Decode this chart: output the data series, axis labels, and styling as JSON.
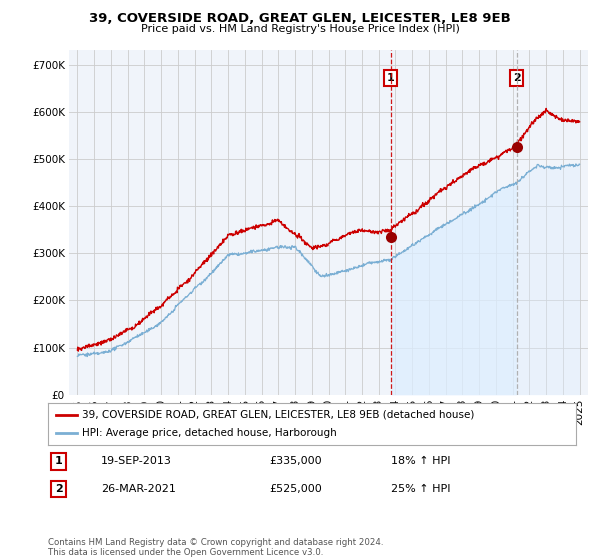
{
  "title": "39, COVERSIDE ROAD, GREAT GLEN, LEICESTER, LE8 9EB",
  "subtitle": "Price paid vs. HM Land Registry's House Price Index (HPI)",
  "ylabel_ticks": [
    "£0",
    "£100K",
    "£200K",
    "£300K",
    "£400K",
    "£500K",
    "£600K",
    "£700K"
  ],
  "ytick_values": [
    0,
    100000,
    200000,
    300000,
    400000,
    500000,
    600000,
    700000
  ],
  "ylim": [
    0,
    730000
  ],
  "xlim_start": 1994.5,
  "xlim_end": 2025.5,
  "sale1_date": 2013.72,
  "sale1_price": 335000,
  "sale2_date": 2021.23,
  "sale2_price": 525000,
  "red_line_color": "#cc0000",
  "blue_line_color": "#7bafd4",
  "blue_fill_color": "#ddeeff",
  "vline1_color": "#cc0000",
  "vline2_color": "#aaaaaa",
  "marker_color": "#990000",
  "legend_label_red": "39, COVERSIDE ROAD, GREAT GLEN, LEICESTER, LE8 9EB (detached house)",
  "legend_label_blue": "HPI: Average price, detached house, Harborough",
  "footer": "Contains HM Land Registry data © Crown copyright and database right 2024.\nThis data is licensed under the Open Government Licence v3.0.",
  "bg_color": "#ffffff",
  "plot_bg_color": "#f0f4fa",
  "grid_color": "#cccccc",
  "xtick_years": [
    1995,
    1996,
    1997,
    1998,
    1999,
    2000,
    2001,
    2002,
    2003,
    2004,
    2005,
    2006,
    2007,
    2008,
    2009,
    2010,
    2011,
    2012,
    2013,
    2014,
    2015,
    2016,
    2017,
    2018,
    2019,
    2020,
    2021,
    2022,
    2023,
    2024,
    2025
  ],
  "title_fontsize": 9.5,
  "subtitle_fontsize": 8,
  "tick_fontsize": 7.5,
  "legend_fontsize": 7.5,
  "annotation_fontsize": 8
}
